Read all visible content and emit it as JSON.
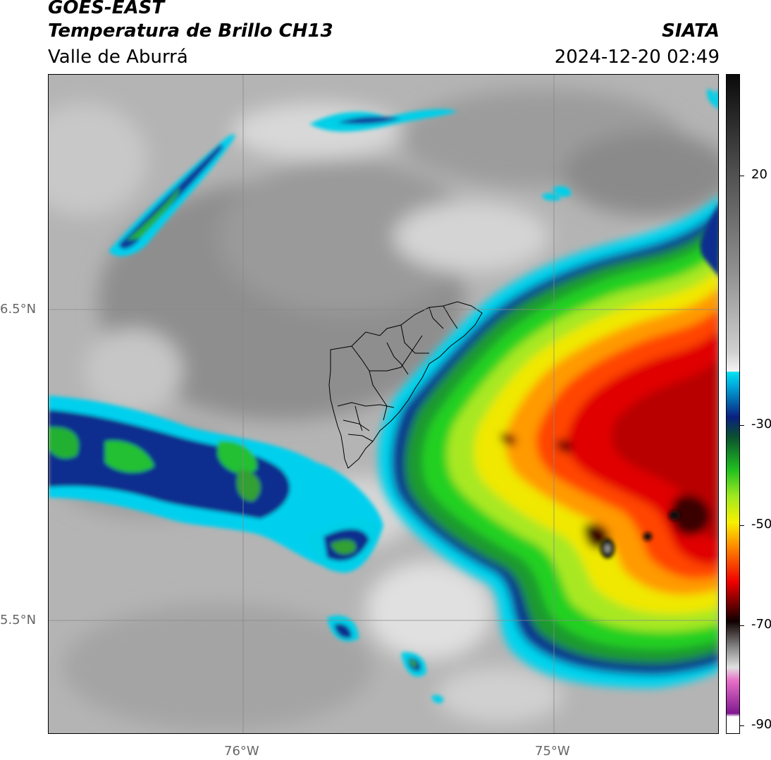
{
  "header": {
    "satellite": "GOES-EAST",
    "product": "Temperatura de Brillo CH13",
    "region": "Valle de Aburrá",
    "organization": "SIATA",
    "datetime": "2024-12-20 02:49"
  },
  "map": {
    "lat_labels": [
      "6.5°N",
      "5.5°N"
    ],
    "lon_labels": [
      "76°W",
      "75°W"
    ]
  },
  "colorbar": {
    "ticks": [
      "20",
      "-30",
      "-50",
      "-70",
      "-90"
    ],
    "tick_values": [
      20,
      -30,
      -50,
      -70,
      -90
    ],
    "range": [
      -90,
      40
    ],
    "colors": {
      "warm_gray": "#8c8c8c",
      "light_gray": "#e6e6e6",
      "cyan": "#00d8f0",
      "blue": "#0a2a90",
      "green": "#20c020",
      "yellow": "#e8e800",
      "orange": "#ff8000",
      "red": "#e00000",
      "dark": "#200000",
      "pink": "#e060c0",
      "purple": "#802090"
    }
  }
}
